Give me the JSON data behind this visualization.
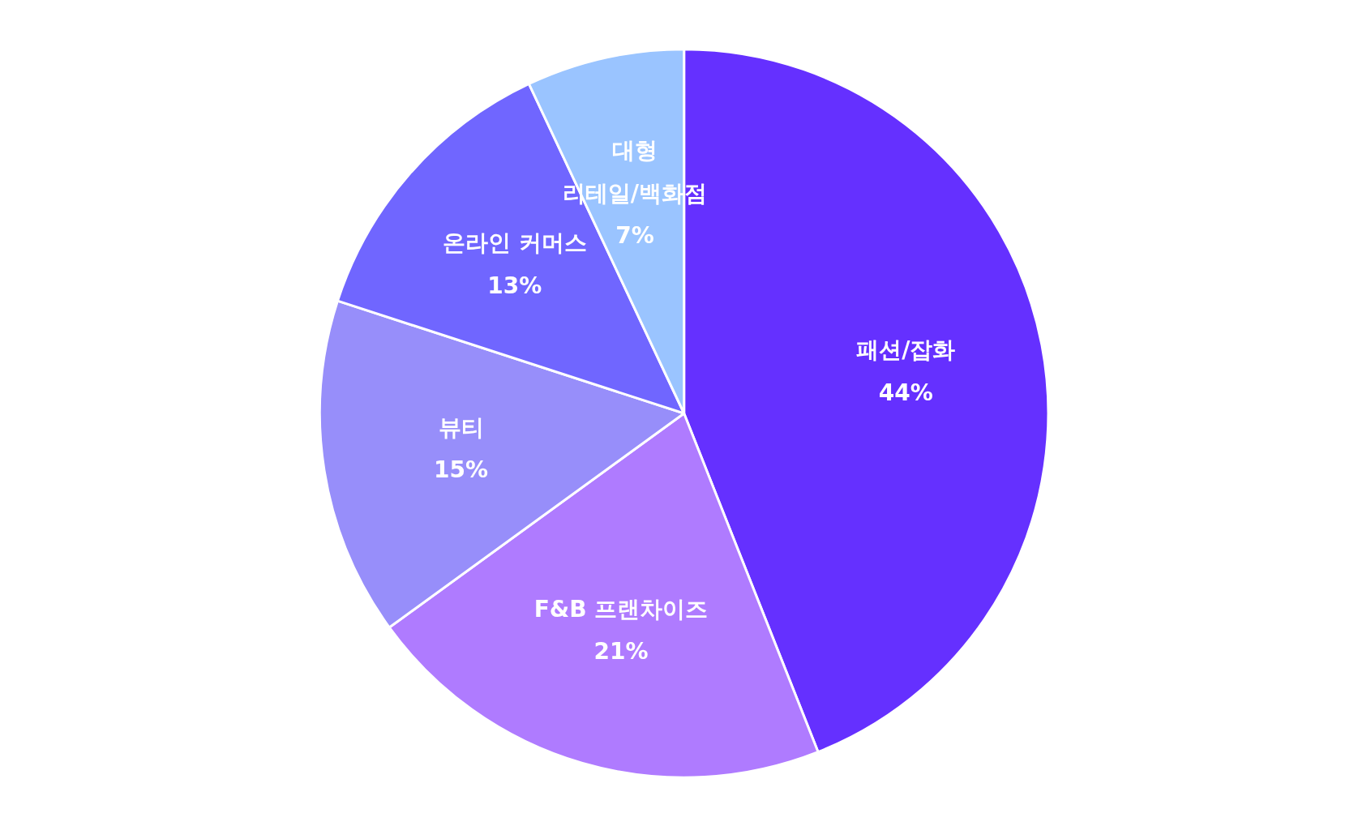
{
  "chart_data": {
    "type": "pie",
    "categories": [
      "패션/잡화",
      "F&B 프랜차이즈",
      "뷰티",
      "온라인 커머스",
      "대형\n리테일/백화점"
    ],
    "values": [
      44,
      21,
      15,
      13,
      7
    ],
    "colors": [
      "#6530ff",
      "#af7bff",
      "#978efa",
      "#7066ff",
      "#9ac4ff"
    ],
    "value_labels": [
      "44%",
      "21%",
      "15%",
      "13%",
      "7%"
    ]
  }
}
